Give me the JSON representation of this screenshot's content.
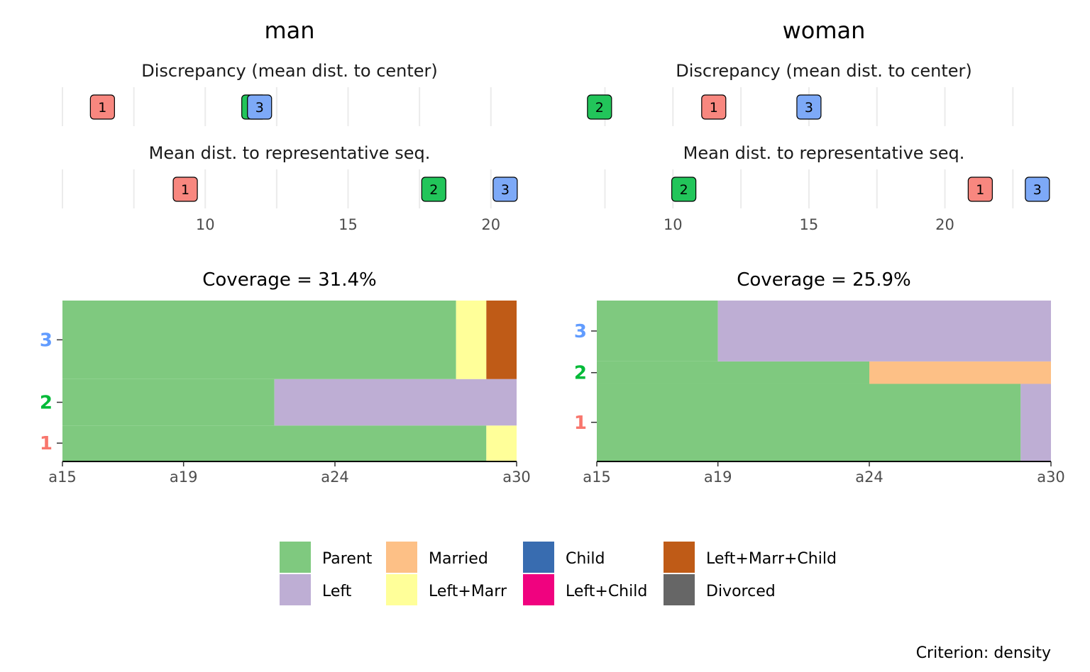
{
  "chart_data": [
    {
      "type": "dot",
      "panel": "man",
      "title": "man",
      "subtitle_top": "Discrepancy (mean dist. to center)",
      "subtitle_bottom": "Mean dist. to representative seq.",
      "xticks": [
        10,
        15,
        20
      ],
      "xlim": [
        5.0,
        20.9
      ],
      "discrepancy": [
        {
          "label": "1",
          "value": 6.4
        },
        {
          "label": "2",
          "value": 11.7
        },
        {
          "label": "3",
          "value": 11.9
        }
      ],
      "mean_dist": [
        {
          "label": "1",
          "value": 9.3
        },
        {
          "label": "2",
          "value": 18.0
        },
        {
          "label": "3",
          "value": 20.5
        }
      ]
    },
    {
      "type": "dot",
      "panel": "woman",
      "title": "woman",
      "subtitle_top": "Discrepancy (mean dist. to center)",
      "subtitle_bottom": "Mean dist. to representative seq.",
      "xticks": [
        10,
        15,
        20
      ],
      "xlim": [
        7.2,
        23.9
      ],
      "discrepancy": [
        {
          "label": "2",
          "value": 7.3
        },
        {
          "label": "1",
          "value": 11.5
        },
        {
          "label": "3",
          "value": 15.0
        }
      ],
      "mean_dist": [
        {
          "label": "2",
          "value": 10.4
        },
        {
          "label": "1",
          "value": 21.3
        },
        {
          "label": "3",
          "value": 23.4
        }
      ]
    },
    {
      "type": "sequence-index",
      "panel": "man",
      "title": "Coverage = 31.4%",
      "xticks": [
        "a15",
        "a19",
        "a24",
        "a30"
      ],
      "ages": [
        15,
        30
      ],
      "sequences": [
        {
          "label": "1",
          "weight": 0.22,
          "segments": [
            {
              "state": "Parent",
              "from": 15,
              "to": 29
            },
            {
              "state": "Left+Marr",
              "from": 29,
              "to": 30
            }
          ]
        },
        {
          "label": "2",
          "weight": 0.29,
          "segments": [
            {
              "state": "Parent",
              "from": 15,
              "to": 22
            },
            {
              "state": "Left",
              "from": 22,
              "to": 30
            }
          ]
        },
        {
          "label": "3",
          "weight": 0.49,
          "segments": [
            {
              "state": "Parent",
              "from": 15,
              "to": 28
            },
            {
              "state": "Left+Marr",
              "from": 28,
              "to": 29
            },
            {
              "state": "Left+Marr+Child",
              "from": 29,
              "to": 30
            }
          ]
        }
      ]
    },
    {
      "type": "sequence-index",
      "panel": "woman",
      "title": "Coverage = 25.9%",
      "xticks": [
        "a15",
        "a19",
        "a24",
        "a30"
      ],
      "ages": [
        15,
        30
      ],
      "sequences": [
        {
          "label": "1",
          "weight": 0.48,
          "segments": [
            {
              "state": "Parent",
              "from": 15,
              "to": 29
            },
            {
              "state": "Left",
              "from": 29,
              "to": 30
            }
          ]
        },
        {
          "label": "2",
          "weight": 0.14,
          "segments": [
            {
              "state": "Parent",
              "from": 15,
              "to": 24
            },
            {
              "state": "Married",
              "from": 24,
              "to": 30
            }
          ]
        },
        {
          "label": "3",
          "weight": 0.38,
          "segments": [
            {
              "state": "Parent",
              "from": 15,
              "to": 19
            },
            {
              "state": "Left",
              "from": 19,
              "to": 30
            }
          ]
        }
      ]
    }
  ],
  "cluster_colors": {
    "1": "#F8766D",
    "2": "#00BA38",
    "3": "#619CFF"
  },
  "cluster_fill": {
    "1": "#F8877F",
    "2": "#22C55A",
    "3": "#7DA9F7"
  },
  "states": [
    {
      "name": "Parent",
      "color": "#7FC97F"
    },
    {
      "name": "Left",
      "color": "#BEAED4"
    },
    {
      "name": "Married",
      "color": "#FDC086"
    },
    {
      "name": "Left+Marr",
      "color": "#FFFF99"
    },
    {
      "name": "Child",
      "color": "#386CB0"
    },
    {
      "name": "Left+Child",
      "color": "#F0027F"
    },
    {
      "name": "Left+Marr+Child",
      "color": "#BF5B17"
    },
    {
      "name": "Divorced",
      "color": "#666666"
    }
  ],
  "caption": "Criterion: density"
}
